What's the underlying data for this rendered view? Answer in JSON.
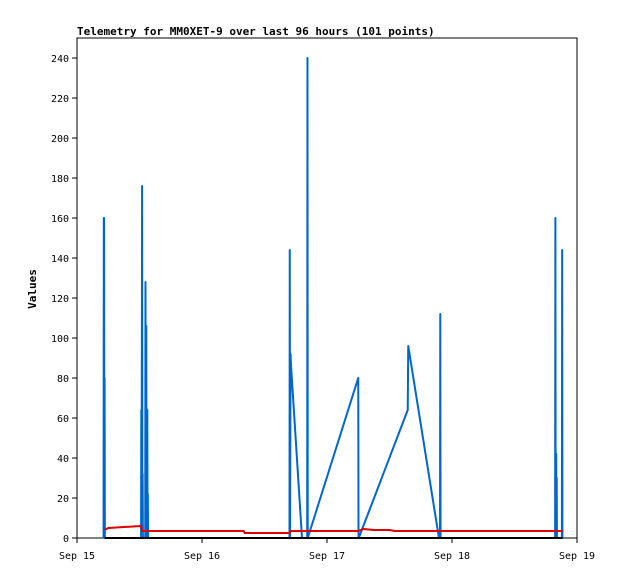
{
  "chart_data": {
    "type": "line",
    "title": "Telemetry for MM0XET-9 over last 96 hours (101 points)",
    "xlabel": "",
    "ylabel": "Values",
    "x_ticks": [
      "Sep 15",
      "Sep 16",
      "Sep 17",
      "Sep 18",
      "Sep 19"
    ],
    "x_tick_values": [
      0,
      24,
      48,
      72,
      96
    ],
    "xlim": [
      0,
      96
    ],
    "ylim": [
      0,
      250
    ],
    "y_ticks": [
      0,
      20,
      40,
      60,
      80,
      100,
      120,
      140,
      160,
      180,
      200,
      220,
      240
    ],
    "grid": false,
    "legend": "none",
    "x_unit_note": "hours since Sep 15 00:00",
    "series": [
      {
        "color": "#0066cc",
        "points": [
          [
            5.1,
            0
          ],
          [
            5.15,
            160
          ],
          [
            5.2,
            160
          ],
          [
            5.25,
            0
          ],
          [
            5.3,
            80
          ],
          [
            5.35,
            0
          ],
          [
            12.3,
            0
          ],
          [
            12.35,
            64
          ],
          [
            12.4,
            0
          ],
          [
            12.5,
            176
          ],
          [
            12.55,
            0
          ],
          [
            12.6,
            32
          ],
          [
            12.65,
            0
          ],
          [
            13.1,
            0
          ],
          [
            13.15,
            128
          ],
          [
            13.2,
            0
          ],
          [
            13.3,
            106
          ],
          [
            13.35,
            0
          ],
          [
            13.5,
            64
          ],
          [
            13.55,
            0
          ],
          [
            13.6,
            22
          ],
          [
            13.65,
            0
          ],
          [
            40.8,
            0
          ],
          [
            40.85,
            144
          ],
          [
            40.9,
            0
          ],
          [
            41.0,
            92
          ],
          [
            41.1,
            86
          ],
          [
            43.2,
            0
          ],
          [
            44.2,
            0
          ],
          [
            44.25,
            240
          ],
          [
            44.3,
            0
          ],
          [
            54.0,
            80
          ],
          [
            54.05,
            0
          ],
          [
            54.1,
            0
          ],
          [
            63.5,
            64
          ],
          [
            63.6,
            96
          ],
          [
            69.5,
            0
          ],
          [
            69.7,
            0
          ],
          [
            69.75,
            112
          ],
          [
            69.8,
            0
          ],
          [
            91.8,
            0
          ],
          [
            91.85,
            160
          ],
          [
            91.9,
            0
          ],
          [
            92.0,
            42
          ],
          [
            92.05,
            0
          ],
          [
            92.1,
            30
          ],
          [
            92.15,
            0
          ],
          [
            93.1,
            0
          ],
          [
            93.15,
            144
          ],
          [
            93.2,
            0
          ],
          [
            93.25,
            0
          ]
        ]
      },
      {
        "color": "#e00000",
        "points": [
          [
            5.3,
            4
          ],
          [
            6.0,
            5
          ],
          [
            9.0,
            5.5
          ],
          [
            12.3,
            6
          ],
          [
            12.5,
            3.5
          ],
          [
            32.0,
            3.5
          ],
          [
            32.2,
            2.5
          ],
          [
            40.8,
            2.5
          ],
          [
            41.0,
            3.5
          ],
          [
            54.0,
            3.5
          ],
          [
            55.0,
            4.5
          ],
          [
            57.0,
            4
          ],
          [
            60.0,
            4
          ],
          [
            61.0,
            3.5
          ],
          [
            93.25,
            3.5
          ]
        ]
      },
      {
        "color": "#000000",
        "points": [
          [
            5.3,
            0
          ],
          [
            93.25,
            0
          ]
        ]
      }
    ]
  }
}
